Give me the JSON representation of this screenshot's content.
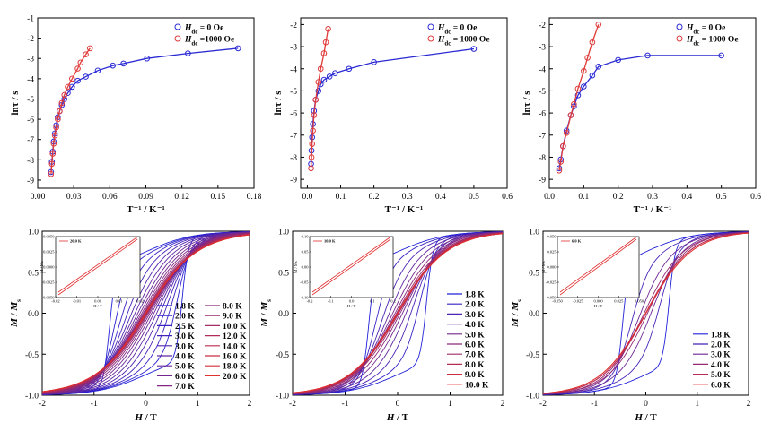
{
  "chart_data": [
    {
      "type": "scatter",
      "xlabel": "T⁻¹ / K⁻¹",
      "ylabel": "lnτ / s",
      "xlim": [
        0,
        0.18
      ],
      "ylim": [
        -9.4,
        -1
      ],
      "xticks": [
        "0.00",
        "0.03",
        "0.06",
        "0.09",
        "0.12",
        "0.15",
        "0.18"
      ],
      "xtick_values": [
        0,
        0.03,
        0.06,
        0.09,
        0.12,
        0.15,
        0.18
      ],
      "yticks": [
        "-1",
        "-2",
        "-3",
        "-4",
        "-5",
        "-6",
        "-7",
        "-8",
        "-9"
      ],
      "ytick_values": [
        -1,
        -2,
        -3,
        -4,
        -5,
        -6,
        -7,
        -8,
        -9
      ],
      "legend_position": "top-right",
      "series": [
        {
          "name": "H_dc = 0 Oe",
          "label_main": "H",
          "label_sub": "dc",
          "label_rest": " = 0 Oe",
          "color": "#2a2ad4",
          "x": [
            0.0111,
            0.0118,
            0.0125,
            0.0133,
            0.0143,
            0.0154,
            0.0167,
            0.0182,
            0.02,
            0.0222,
            0.025,
            0.0286,
            0.0333,
            0.04,
            0.05,
            0.0625,
            0.0714,
            0.0909,
            0.125,
            0.1667
          ],
          "y": [
            -8.6,
            -8.1,
            -7.6,
            -7.1,
            -6.7,
            -6.3,
            -5.9,
            -5.6,
            -5.3,
            -5.0,
            -4.7,
            -4.4,
            -4.1,
            -3.9,
            -3.6,
            -3.35,
            -3.25,
            -3.0,
            -2.75,
            -2.5
          ]
        },
        {
          "name": "H_dc = 1000 Oe",
          "label_main": "H",
          "label_sub": "dc",
          "label_rest": " =1000 Oe",
          "color": "#e03a3a",
          "x": [
            0.0111,
            0.0118,
            0.0125,
            0.0133,
            0.0143,
            0.0154,
            0.0167,
            0.0182,
            0.02,
            0.0222,
            0.025,
            0.0286,
            0.0333,
            0.0357,
            0.04,
            0.0435
          ],
          "y": [
            -8.7,
            -8.2,
            -7.7,
            -7.2,
            -6.8,
            -6.4,
            -6.0,
            -5.6,
            -5.2,
            -4.8,
            -4.4,
            -4.0,
            -3.5,
            -3.2,
            -2.8,
            -2.5
          ]
        }
      ]
    },
    {
      "type": "scatter",
      "xlabel": "T⁻¹ / K⁻¹",
      "ylabel": "lnτ / s",
      "xlim": [
        -0.02,
        0.6
      ],
      "ylim": [
        -9.4,
        -1.7
      ],
      "xticks": [
        "0.0",
        "0.1",
        "0.2",
        "0.3",
        "0.4",
        "0.5",
        "0.6"
      ],
      "xtick_values": [
        0,
        0.1,
        0.2,
        0.3,
        0.4,
        0.5,
        0.6
      ],
      "yticks": [
        "-2",
        "-3",
        "-4",
        "-5",
        "-6",
        "-7",
        "-8",
        "-9"
      ],
      "ytick_values": [
        -2,
        -3,
        -4,
        -5,
        -6,
        -7,
        -8,
        -9
      ],
      "legend_position": "top-right",
      "series": [
        {
          "name": "H_dc = 0 Oe",
          "label_main": "H",
          "label_sub": "dc",
          "label_rest": " = 0 Oe",
          "color": "#2a2ad4",
          "x": [
            0.0111,
            0.0125,
            0.0143,
            0.0167,
            0.02,
            0.025,
            0.0333,
            0.04,
            0.05,
            0.0667,
            0.0833,
            0.125,
            0.2,
            0.5
          ],
          "y": [
            -8.3,
            -7.7,
            -7.1,
            -6.5,
            -5.9,
            -5.4,
            -5.0,
            -4.7,
            -4.5,
            -4.35,
            -4.2,
            -4.0,
            -3.7,
            -3.1
          ]
        },
        {
          "name": "H_dc = 1000 Oe",
          "label_main": "H",
          "label_sub": "dc",
          "label_rest": " = 1000 Oe",
          "color": "#e03a3a",
          "x": [
            0.0111,
            0.0125,
            0.0143,
            0.0167,
            0.02,
            0.025,
            0.0333,
            0.04,
            0.05,
            0.0556,
            0.0625
          ],
          "y": [
            -8.5,
            -8.0,
            -7.4,
            -6.8,
            -6.1,
            -5.4,
            -4.6,
            -4.0,
            -3.3,
            -2.8,
            -2.2
          ]
        }
      ]
    },
    {
      "type": "scatter",
      "xlabel": "T⁻¹ / K⁻¹",
      "ylabel": "lnτ / s",
      "xlim": [
        0,
        0.6
      ],
      "ylim": [
        -9.4,
        -1.7
      ],
      "xticks": [
        "0.0",
        "0.1",
        "0.2",
        "0.3",
        "0.4",
        "0.5",
        "0.6"
      ],
      "xtick_values": [
        0,
        0.1,
        0.2,
        0.3,
        0.4,
        0.5,
        0.6
      ],
      "yticks": [
        "-2",
        "-3",
        "-4",
        "-5",
        "-6",
        "-7",
        "-8",
        "-9"
      ],
      "ytick_values": [
        -2,
        -3,
        -4,
        -5,
        -6,
        -7,
        -8,
        -9
      ],
      "legend_position": "top-right",
      "series": [
        {
          "name": "H_dc = 0 Oe",
          "label_main": "H",
          "label_sub": "dc",
          "label_rest": " = 0 Oe",
          "color": "#2a2ad4",
          "x": [
            0.0286,
            0.0333,
            0.04,
            0.05,
            0.0625,
            0.0714,
            0.0833,
            0.1,
            0.125,
            0.1429,
            0.2,
            0.2857,
            0.5
          ],
          "y": [
            -8.5,
            -8.1,
            -7.5,
            -6.8,
            -6.1,
            -5.7,
            -5.2,
            -4.8,
            -4.3,
            -3.9,
            -3.6,
            -3.4,
            -3.4
          ]
        },
        {
          "name": "H_dc = 1000 Oe",
          "label_main": "H",
          "label_sub": "dc",
          "label_rest": " = 1000 Oe",
          "color": "#e03a3a",
          "x": [
            0.0286,
            0.0333,
            0.04,
            0.05,
            0.0625,
            0.0714,
            0.0833,
            0.1,
            0.1111,
            0.125,
            0.1429
          ],
          "y": [
            -8.6,
            -8.2,
            -7.5,
            -6.9,
            -6.1,
            -5.6,
            -4.9,
            -4.1,
            -3.5,
            -2.8,
            -2.0
          ]
        }
      ]
    },
    {
      "type": "line",
      "xlabel": "H / T",
      "ylabel": "M / Ms",
      "ylabel_main": "M",
      "ylabel_rest": " / M",
      "ylabel_sub": "s",
      "xlim": [
        -2,
        2
      ],
      "ylim": [
        -1,
        1
      ],
      "xticks": [
        "-2",
        "-1",
        "0",
        "1",
        "2"
      ],
      "xtick_values": [
        -2,
        -1,
        0,
        1,
        2
      ],
      "yticks": [
        "1.0",
        "0.5",
        "0.0",
        "-0.5",
        "-1.0"
      ],
      "ytick_values": [
        1,
        0.5,
        0,
        -0.5,
        -1
      ],
      "legend_position": "bottom-right",
      "series_names": [
        "1.8 K",
        "2.0 K",
        "2.5 K",
        "3.0 K",
        "3.0 K",
        "4.0 K",
        "5.0 K",
        "6.0 K",
        "7.0 K",
        "8.0 K",
        "9.0 K",
        "10.0 K",
        "12.0 K",
        "14.0 K",
        "16.0 K",
        "18.0 K",
        "20.0 K"
      ],
      "inset": {
        "legend": "20.0 K",
        "xticks": [
          "-0.02",
          "-0.01",
          "0.00",
          "0.01",
          "0.02"
        ],
        "yticks": [
          "0.0050",
          "0.0025",
          "0.0000",
          "-0.0025",
          "-0.0050"
        ],
        "xlabel": "H / T",
        "ylabel": "M / Ms"
      }
    },
    {
      "type": "line",
      "xlabel": "H / T",
      "ylabel": "M / Ms",
      "ylabel_main": "M",
      "ylabel_rest": " / M",
      "ylabel_sub": "s",
      "xlim": [
        -2,
        2
      ],
      "ylim": [
        -1,
        1
      ],
      "xticks": [
        "-2",
        "-1",
        "0",
        "1",
        "2"
      ],
      "xtick_values": [
        -2,
        -1,
        0,
        1,
        2
      ],
      "yticks": [
        "1.0",
        "0.5",
        "0.0",
        "-0.5",
        "-1.0"
      ],
      "ytick_values": [
        1,
        0.5,
        0,
        -0.5,
        -1
      ],
      "legend_position": "bottom-right",
      "series_names": [
        "1.8 K",
        "2.0 K",
        "3.0 K",
        "4.0 K",
        "5.0 K",
        "6.0 K",
        "7.0 K",
        "8.0 K",
        "9.0 K",
        "10.0 K"
      ],
      "inset": {
        "legend": "10.0 K",
        "xticks": [
          "-0.2",
          "-0.1",
          "0.0",
          "0.1",
          "0.2"
        ],
        "yticks": [
          "0.10",
          "0.05",
          "0.00",
          "-0.05",
          "-0.10"
        ],
        "xlabel": "H / T",
        "ylabel": "M / Ms"
      }
    },
    {
      "type": "line",
      "xlabel": "H / T",
      "ylabel": "M / Ms",
      "ylabel_main": "M",
      "ylabel_rest": " / M",
      "ylabel_sub": "s",
      "xlim": [
        -2,
        2
      ],
      "ylim": [
        -1,
        1
      ],
      "xticks": [
        "-2",
        "-1",
        "0",
        "1",
        "2"
      ],
      "xtick_values": [
        -2,
        -1,
        0,
        1,
        2
      ],
      "yticks": [
        "1.0",
        "0.5",
        "0.0",
        "-0.5",
        "-1.0"
      ],
      "ytick_values": [
        1,
        0.5,
        0,
        -0.5,
        -1
      ],
      "legend_position": "bottom-right",
      "series_names": [
        "1.8 K",
        "2.0 K",
        "3.0 K",
        "4.0 K",
        "5.0 K",
        "6.0 K"
      ],
      "inset": {
        "legend": "6.0 K",
        "xticks": [
          "-0.050",
          "-0.025",
          "0.000",
          "0.025",
          "0.050"
        ],
        "yticks": [
          "0.050",
          "0.025",
          "0.000",
          "-0.025",
          "-0.050"
        ],
        "xlabel": "H / T",
        "ylabel": "M / Ms"
      }
    }
  ]
}
